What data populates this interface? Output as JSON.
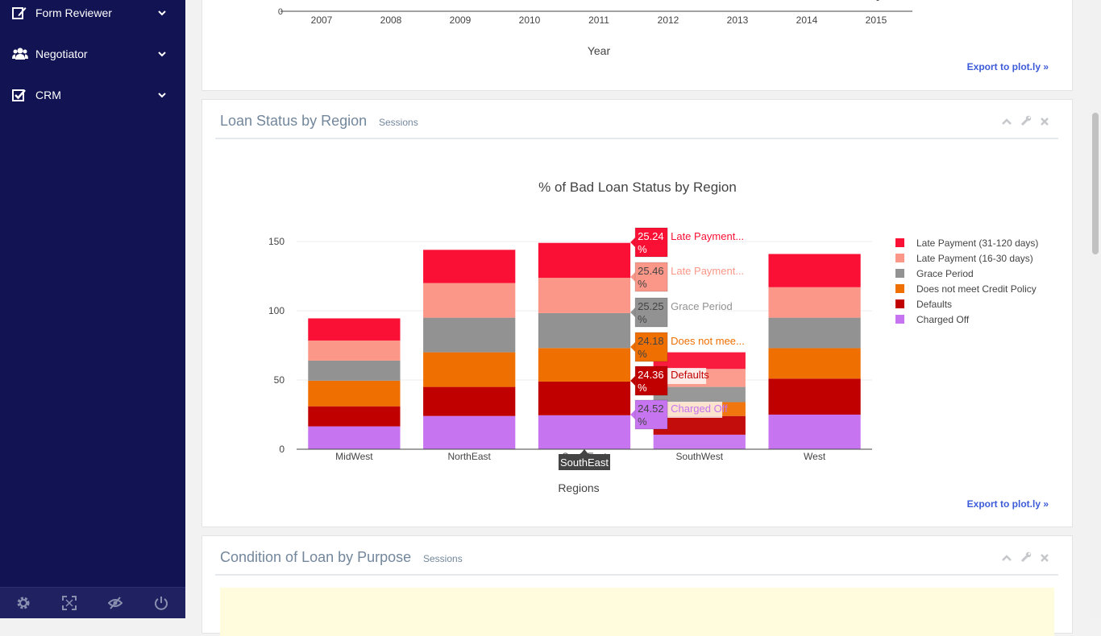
{
  "sidebar": {
    "items": [
      {
        "label": "Form Reviewer",
        "icon": "edit-icon"
      },
      {
        "label": "Negotiator",
        "icon": "users-icon"
      },
      {
        "label": "CRM",
        "icon": "checkbox-icon"
      }
    ],
    "footer": [
      "settings-icon",
      "fullscreen-icon",
      "eye-slash-icon",
      "power-icon"
    ]
  },
  "top_panel": {
    "x_ticks": [
      "2007",
      "2008",
      "2009",
      "2010",
      "2011",
      "2012",
      "2013",
      "2014",
      "2015"
    ],
    "y_tick": "0",
    "xlabel": "Year",
    "export": "Export to plot.ly »"
  },
  "loan_panel": {
    "title": "Loan Status by Region",
    "subtitle": "Sessions",
    "export": "Export to plot.ly »"
  },
  "purpose_panel": {
    "title": "Condition of Loan by Purpose",
    "subtitle": "Sessions"
  },
  "chart_data": {
    "type": "bar",
    "stacked": true,
    "title": "% of Bad Loan Status by Region",
    "xlabel": "Regions",
    "ylabel": "",
    "ylim": [
      0,
      150
    ],
    "yticks": [
      0,
      50,
      100,
      150
    ],
    "categories": [
      "MidWest",
      "NorthEast",
      "SouthEast",
      "SouthWest",
      "West"
    ],
    "series": [
      {
        "name": "Charged Off",
        "color": "#c674ef",
        "values": [
          16.5,
          24,
          24.52,
          10.5,
          25
        ]
      },
      {
        "name": "Defaults",
        "color": "#c00000",
        "values": [
          14.5,
          21,
          24.36,
          13.5,
          26
        ]
      },
      {
        "name": "Does not meet Credit Policy",
        "color": "#ef6f00",
        "values": [
          18.5,
          25,
          24.18,
          10,
          22
        ]
      },
      {
        "name": "Grace Period",
        "color": "#929292",
        "values": [
          14.5,
          25,
          25.25,
          11,
          22
        ]
      },
      {
        "name": "Late Payment (16-30 days)",
        "color": "#fb9788",
        "values": [
          14.5,
          25,
          25.46,
          13,
          22
        ]
      },
      {
        "name": "Late Payment (31-120 days)",
        "color": "#f91034",
        "values": [
          16,
          24,
          25.24,
          12,
          24
        ]
      }
    ],
    "legend": [
      "Late Payment (31-120 days)",
      "Late Payment (16-30 days)",
      "Grace Period",
      "Does not meet Credit Policy",
      "Defaults",
      "Charged Off"
    ],
    "legend_position": "right",
    "hover": {
      "category": "SouthEast",
      "labels": [
        {
          "value": "25.24",
          "unit": "%",
          "name": "Late Payment...",
          "color": "#f91034",
          "text_color": "#ffffff",
          "name_color": "#f91034"
        },
        {
          "value": "25.46",
          "unit": "%",
          "name": "Late Payment...",
          "color": "#fb9788",
          "text_color": "#444444",
          "name_color": "#fb9788"
        },
        {
          "value": "25.25",
          "unit": "%",
          "name": "Grace Period",
          "color": "#929292",
          "text_color": "#444444",
          "name_color": "#929292"
        },
        {
          "value": "24.18",
          "unit": "%",
          "name": "Does not mee...",
          "color": "#ef6f00",
          "text_color": "#444444",
          "name_color": "#ef6f00"
        },
        {
          "value": "24.36",
          "unit": "%",
          "name": "Defaults",
          "color": "#c00000",
          "text_color": "#ffffff",
          "name_color": "#c00000"
        },
        {
          "value": "24.52",
          "unit": "%",
          "name": "Charged Off",
          "color": "#c674ef",
          "text_color": "#444444",
          "name_color": "#c674ef"
        }
      ]
    }
  }
}
